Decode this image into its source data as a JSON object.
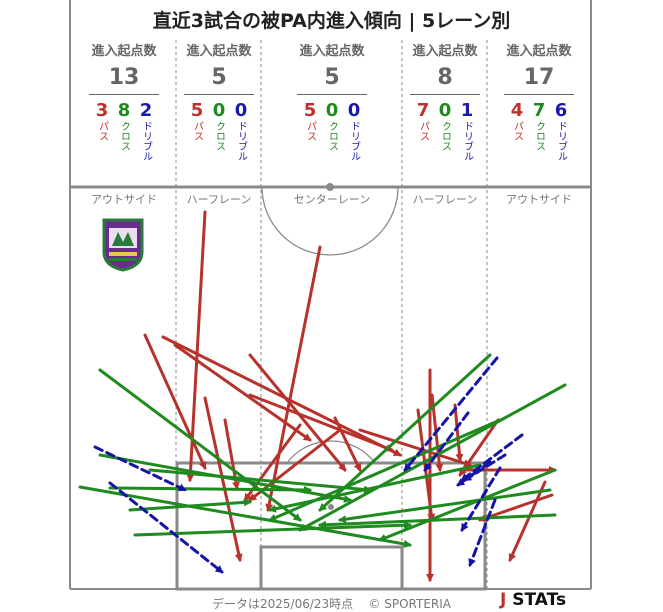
{
  "title": "直近3試合の被PA内進入傾向 | 5レーン別",
  "chart_data": {
    "type": "other",
    "title": "直近3試合の被PA内進入傾向 | 5レーン別",
    "header_label": "進入起点数",
    "category_labels": {
      "pass": "パス",
      "cross": "クロス",
      "dribble": "ドリブル"
    },
    "colors": {
      "pass": "#b8322c",
      "cross": "#1f8a1f",
      "dribble": "#1414a8"
    },
    "lanes": [
      {
        "name": "アウトサイド",
        "total": "13",
        "pass": "3",
        "cross": "8",
        "dribble": "2"
      },
      {
        "name": "ハーフレーン",
        "total": "5",
        "pass": "5",
        "cross": "0",
        "dribble": "0"
      },
      {
        "name": "センターレーン",
        "total": "5",
        "pass": "5",
        "cross": "0",
        "dribble": "0"
      },
      {
        "name": "ハーフレーン",
        "total": "8",
        "pass": "7",
        "cross": "0",
        "dribble": "1"
      },
      {
        "name": "アウトサイド",
        "total": "17",
        "pass": "4",
        "cross": "7",
        "dribble": "6"
      }
    ],
    "arrows": [
      {
        "type": "pass",
        "from": [
          205,
          212
        ],
        "to": [
          190,
          480
        ]
      },
      {
        "type": "pass",
        "from": [
          320,
          247
        ],
        "to": [
          268,
          510
        ]
      },
      {
        "type": "pass",
        "from": [
          145,
          335
        ],
        "to": [
          205,
          468
        ]
      },
      {
        "type": "pass",
        "from": [
          163,
          337
        ],
        "to": [
          400,
          455
        ]
      },
      {
        "type": "pass",
        "from": [
          175,
          345
        ],
        "to": [
          310,
          440
        ]
      },
      {
        "type": "pass",
        "from": [
          250,
          355
        ],
        "to": [
          345,
          470
        ]
      },
      {
        "type": "pass",
        "from": [
          250,
          395
        ],
        "to": [
          392,
          450
        ]
      },
      {
        "type": "pass",
        "from": [
          205,
          398
        ],
        "to": [
          240,
          560
        ]
      },
      {
        "type": "pass",
        "from": [
          225,
          420
        ],
        "to": [
          237,
          488
        ]
      },
      {
        "type": "pass",
        "from": [
          335,
          418
        ],
        "to": [
          360,
          470
        ]
      },
      {
        "type": "pass",
        "from": [
          300,
          425
        ],
        "to": [
          245,
          500
        ]
      },
      {
        "type": "pass",
        "from": [
          430,
          370
        ],
        "to": [
          430,
          580
        ]
      },
      {
        "type": "pass",
        "from": [
          432,
          395
        ],
        "to": [
          440,
          470
        ]
      },
      {
        "type": "pass",
        "from": [
          418,
          410
        ],
        "to": [
          432,
          520
        ]
      },
      {
        "type": "pass",
        "from": [
          455,
          405
        ],
        "to": [
          460,
          460
        ]
      },
      {
        "type": "pass",
        "from": [
          498,
          420
        ],
        "to": [
          460,
          475
        ]
      },
      {
        "type": "pass",
        "from": [
          552,
          495
        ],
        "to": [
          480,
          520
        ]
      },
      {
        "type": "pass",
        "from": [
          545,
          482
        ],
        "to": [
          510,
          560
        ]
      },
      {
        "type": "pass",
        "from": [
          460,
          470
        ],
        "to": [
          555,
          470
        ]
      },
      {
        "type": "pass",
        "from": [
          360,
          430
        ],
        "to": [
          470,
          465
        ]
      },
      {
        "type": "pass",
        "from": [
          340,
          430
        ],
        "to": [
          250,
          500
        ]
      },
      {
        "type": "cross",
        "from": [
          100,
          370
        ],
        "to": [
          300,
          520
        ]
      },
      {
        "type": "cross",
        "from": [
          100,
          455
        ],
        "to": [
          350,
          500
        ]
      },
      {
        "type": "cross",
        "from": [
          80,
          487
        ],
        "to": [
          410,
          545
        ]
      },
      {
        "type": "cross",
        "from": [
          110,
          488
        ],
        "to": [
          310,
          490
        ]
      },
      {
        "type": "cross",
        "from": [
          130,
          510
        ],
        "to": [
          250,
          502
        ]
      },
      {
        "type": "cross",
        "from": [
          135,
          535
        ],
        "to": [
          410,
          525
        ]
      },
      {
        "type": "cross",
        "from": [
          150,
          470
        ],
        "to": [
          370,
          490
        ]
      },
      {
        "type": "cross",
        "from": [
          490,
          355
        ],
        "to": [
          320,
          510
        ]
      },
      {
        "type": "cross",
        "from": [
          565,
          385
        ],
        "to": [
          300,
          530
        ]
      },
      {
        "type": "cross",
        "from": [
          500,
          420
        ],
        "to": [
          270,
          520
        ]
      },
      {
        "type": "cross",
        "from": [
          555,
          515
        ],
        "to": [
          320,
          525
        ]
      },
      {
        "type": "cross",
        "from": [
          550,
          490
        ],
        "to": [
          340,
          520
        ]
      },
      {
        "type": "cross",
        "from": [
          480,
          465
        ],
        "to": [
          270,
          510
        ]
      },
      {
        "type": "cross",
        "from": [
          555,
          470
        ],
        "to": [
          380,
          540
        ]
      },
      {
        "type": "dribble",
        "from": [
          95,
          447
        ],
        "to": [
          185,
          490
        ]
      },
      {
        "type": "dribble",
        "from": [
          110,
          483
        ],
        "to": [
          222,
          572
        ]
      },
      {
        "type": "dribble",
        "from": [
          497,
          358
        ],
        "to": [
          405,
          470
        ]
      },
      {
        "type": "dribble",
        "from": [
          468,
          413
        ],
        "to": [
          425,
          470
        ]
      },
      {
        "type": "dribble",
        "from": [
          522,
          435
        ],
        "to": [
          462,
          480
        ]
      },
      {
        "type": "dribble",
        "from": [
          505,
          455
        ],
        "to": [
          465,
          480
        ]
      },
      {
        "type": "dribble",
        "from": [
          500,
          468
        ],
        "to": [
          462,
          530
        ]
      },
      {
        "type": "dribble",
        "from": [
          495,
          500
        ],
        "to": [
          470,
          565
        ]
      },
      {
        "type": "dribble",
        "from": [
          490,
          462
        ],
        "to": [
          458,
          485
        ]
      }
    ]
  },
  "footer": {
    "date_text": "データは2025/06/23時点",
    "copyright": "© SPORTERIA"
  },
  "brand": {
    "logo_mark": "J",
    "logo_text": "STATs"
  }
}
